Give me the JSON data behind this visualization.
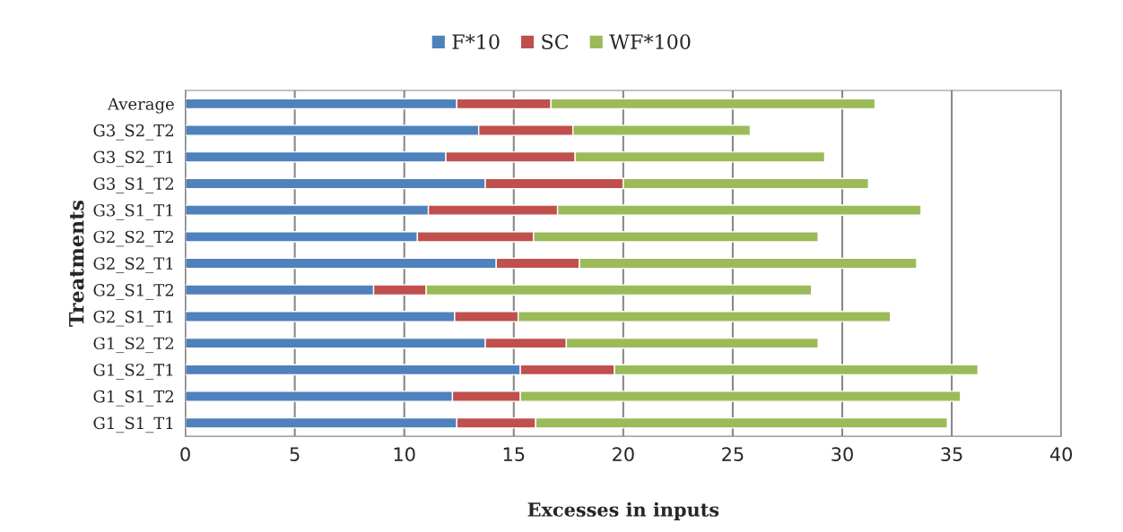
{
  "chart_data": {
    "type": "bar",
    "orientation": "horizontal",
    "stacked": true,
    "categories": [
      "Average",
      "G3_S2_T2",
      "G3_S2_T1",
      "G3_S1_T2",
      "G3_S1_T1",
      "G2_S2_T2",
      "G2_S2_T1",
      "G2_S1_T2",
      "G2_S1_T1",
      "G1_S2_T2",
      "G1_S2_T1",
      "G1_S1_T2",
      "G1_S1_T1"
    ],
    "series": [
      {
        "name": "F*10",
        "color": "#4f81bd",
        "values": [
          12.4,
          13.4,
          11.9,
          13.7,
          11.1,
          10.6,
          14.2,
          8.6,
          12.3,
          13.7,
          15.3,
          12.2,
          12.4
        ]
      },
      {
        "name": "SC",
        "color": "#c0504d",
        "values": [
          4.3,
          4.3,
          5.9,
          6.3,
          5.9,
          5.3,
          3.8,
          2.4,
          2.9,
          3.7,
          4.3,
          3.1,
          3.6
        ]
      },
      {
        "name": "WF*100",
        "color": "#9bbb59",
        "values": [
          14.8,
          8.1,
          11.4,
          11.2,
          16.6,
          13.0,
          15.4,
          17.6,
          17.0,
          11.5,
          16.6,
          20.1,
          18.8
        ]
      }
    ],
    "xlim": [
      0,
      40
    ],
    "xticks": [
      0,
      5,
      10,
      15,
      20,
      25,
      30,
      35,
      40
    ],
    "xlabel": "Excesses in inputs",
    "ylabel": "Treatments",
    "grid": "x",
    "legend": "top"
  }
}
